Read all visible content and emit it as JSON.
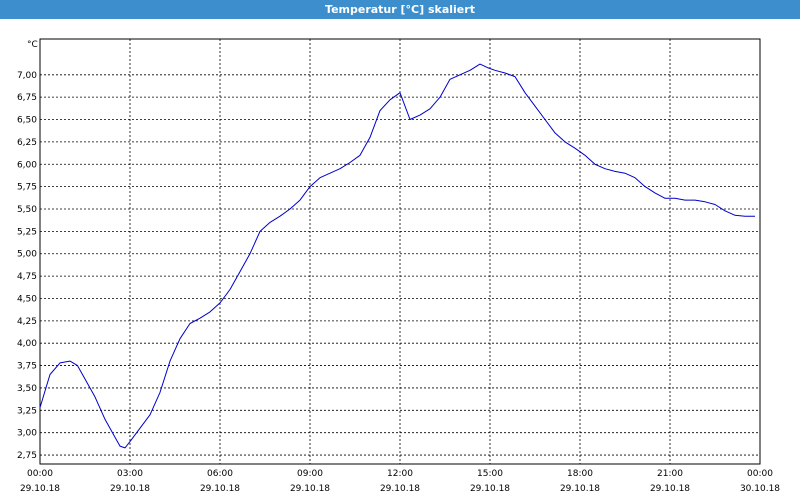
{
  "window": {
    "title": "Temperatur [°C] skaliert"
  },
  "colors": {
    "title_bar": "#3c8fcc",
    "series_line": "#0000cc",
    "grid": "#000000"
  },
  "chart_data": {
    "type": "line",
    "title": "",
    "ylabel": "°C",
    "xlabel": "",
    "grid": true,
    "xlim": [
      "29.10.18 00:00",
      "30.10.18 00:00"
    ],
    "ylim": [
      2.65,
      7.4
    ],
    "x_ticks": [
      {
        "time": "00:00",
        "date": "29.10.18"
      },
      {
        "time": "03:00",
        "date": "29.10.18"
      },
      {
        "time": "06:00",
        "date": "29.10.18"
      },
      {
        "time": "09:00",
        "date": "29.10.18"
      },
      {
        "time": "12:00",
        "date": "29.10.18"
      },
      {
        "time": "15:00",
        "date": "29.10.18"
      },
      {
        "time": "18:00",
        "date": "29.10.18"
      },
      {
        "time": "21:00",
        "date": "29.10.18"
      },
      {
        "time": "00:00",
        "date": "30.10.18"
      }
    ],
    "y_ticks": [
      "2,75",
      "3,00",
      "3,25",
      "3,50",
      "3,75",
      "4,00",
      "4,25",
      "4,50",
      "4,75",
      "5,00",
      "5,25",
      "5,50",
      "5,75",
      "6,00",
      "6,25",
      "6,50",
      "6,75",
      "7,00"
    ],
    "series": [
      {
        "x": [
          "29.10.18 00:00",
          "29.10.18 00:20",
          "29.10.18 00:40",
          "29.10.18 01:00",
          "29.10.18 01:15",
          "29.10.18 01:30",
          "29.10.18 01:50",
          "29.10.18 02:10",
          "29.10.18 02:30",
          "29.10.18 02:40",
          "29.10.18 02:50",
          "29.10.18 03:00",
          "29.10.18 03:20",
          "29.10.18 03:40",
          "29.10.18 04:00",
          "29.10.18 04:20",
          "29.10.18 04:40",
          "29.10.18 05:00",
          "29.10.18 05:20",
          "29.10.18 05:40",
          "29.10.18 06:00",
          "29.10.18 06:20",
          "29.10.18 06:40",
          "29.10.18 07:00",
          "29.10.18 07:20",
          "29.10.18 07:40",
          "29.10.18 08:00",
          "29.10.18 08:20",
          "29.10.18 08:40",
          "29.10.18 09:00",
          "29.10.18 09:20",
          "29.10.18 09:40",
          "29.10.18 10:00",
          "29.10.18 10:20",
          "29.10.18 10:40",
          "29.10.18 11:00",
          "29.10.18 11:20",
          "29.10.18 11:40",
          "29.10.18 12:00",
          "29.10.18 12:20",
          "29.10.18 12:40",
          "29.10.18 13:00",
          "29.10.18 13:20",
          "29.10.18 13:40",
          "29.10.18 14:00",
          "29.10.18 14:20",
          "29.10.18 14:40",
          "29.10.18 14:55",
          "29.10.18 15:10",
          "29.10.18 15:30",
          "29.10.18 15:50",
          "29.10.18 16:10",
          "29.10.18 16:30",
          "29.10.18 16:50",
          "29.10.18 17:10",
          "29.10.18 17:30",
          "29.10.18 17:50",
          "29.10.18 18:10",
          "29.10.18 18:30",
          "29.10.18 18:50",
          "29.10.18 19:10",
          "29.10.18 19:30",
          "29.10.18 19:50",
          "29.10.18 20:10",
          "29.10.18 20:30",
          "29.10.18 20:50",
          "29.10.18 21:10",
          "29.10.18 21:30",
          "29.10.18 21:50",
          "29.10.18 22:10",
          "29.10.18 22:30",
          "29.10.18 22:50",
          "29.10.18 23:10",
          "29.10.18 23:30",
          "29.10.18 23:50"
        ],
        "y": [
          3.28,
          3.65,
          3.78,
          3.8,
          3.75,
          3.6,
          3.4,
          3.15,
          2.95,
          2.85,
          2.83,
          2.9,
          3.05,
          3.2,
          3.45,
          3.8,
          4.05,
          4.22,
          4.28,
          4.35,
          4.45,
          4.6,
          4.8,
          5.0,
          5.25,
          5.35,
          5.42,
          5.5,
          5.6,
          5.75,
          5.85,
          5.9,
          5.95,
          6.02,
          6.1,
          6.3,
          6.6,
          6.72,
          6.8,
          6.5,
          6.55,
          6.62,
          6.75,
          6.95,
          7.0,
          7.05,
          7.12,
          7.08,
          7.05,
          7.02,
          6.98,
          6.8,
          6.65,
          6.5,
          6.35,
          6.25,
          6.18,
          6.1,
          6.0,
          5.95,
          5.92,
          5.9,
          5.85,
          5.75,
          5.68,
          5.62,
          5.62,
          5.6,
          5.6,
          5.58,
          5.55,
          5.48,
          5.43,
          5.42,
          5.42
        ]
      }
    ]
  }
}
